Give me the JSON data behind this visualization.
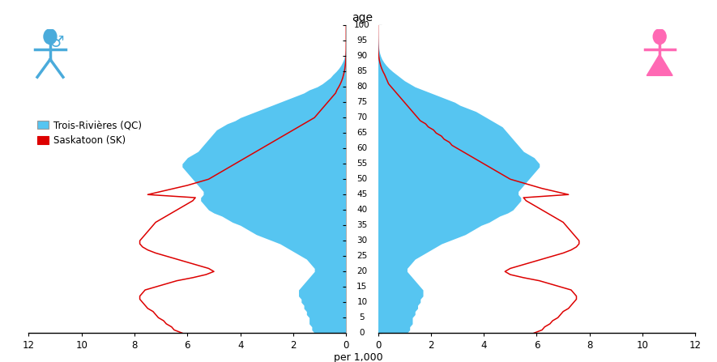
{
  "ages": [
    0,
    1,
    2,
    3,
    4,
    5,
    6,
    7,
    8,
    9,
    10,
    11,
    12,
    13,
    14,
    15,
    16,
    17,
    18,
    19,
    20,
    21,
    22,
    23,
    24,
    25,
    26,
    27,
    28,
    29,
    30,
    31,
    32,
    33,
    34,
    35,
    36,
    37,
    38,
    39,
    40,
    41,
    42,
    43,
    44,
    45,
    46,
    47,
    48,
    49,
    50,
    51,
    52,
    53,
    54,
    55,
    56,
    57,
    58,
    59,
    60,
    61,
    62,
    63,
    64,
    65,
    66,
    67,
    68,
    69,
    70,
    71,
    72,
    73,
    74,
    75,
    76,
    77,
    78,
    79,
    80,
    81,
    82,
    83,
    84,
    85,
    86,
    87,
    88,
    89,
    90,
    91,
    92,
    93,
    94,
    95,
    96,
    97,
    98,
    99,
    100
  ],
  "trois_rivieres_male": [
    1.2,
    1.3,
    1.3,
    1.4,
    1.4,
    1.4,
    1.5,
    1.5,
    1.6,
    1.6,
    1.7,
    1.7,
    1.8,
    1.8,
    1.8,
    1.7,
    1.6,
    1.5,
    1.4,
    1.3,
    1.2,
    1.2,
    1.3,
    1.4,
    1.5,
    1.7,
    1.9,
    2.1,
    2.3,
    2.5,
    2.8,
    3.1,
    3.4,
    3.6,
    3.8,
    4.0,
    4.3,
    4.5,
    4.7,
    5.0,
    5.2,
    5.3,
    5.4,
    5.5,
    5.5,
    5.4,
    5.4,
    5.5,
    5.6,
    5.7,
    5.8,
    5.9,
    6.0,
    6.1,
    6.2,
    6.2,
    6.1,
    6.0,
    5.8,
    5.6,
    5.5,
    5.4,
    5.3,
    5.2,
    5.1,
    5.0,
    4.9,
    4.7,
    4.5,
    4.2,
    4.0,
    3.7,
    3.4,
    3.1,
    2.8,
    2.5,
    2.2,
    1.9,
    1.6,
    1.4,
    1.1,
    0.9,
    0.75,
    0.6,
    0.5,
    0.38,
    0.28,
    0.2,
    0.14,
    0.09,
    0.06,
    0.04,
    0.025,
    0.015,
    0.009,
    0.005,
    0.003,
    0.002,
    0.001,
    0.0005,
    0.0002
  ],
  "trois_rivieres_female": [
    1.1,
    1.2,
    1.2,
    1.3,
    1.3,
    1.3,
    1.4,
    1.4,
    1.5,
    1.5,
    1.6,
    1.6,
    1.7,
    1.7,
    1.7,
    1.6,
    1.5,
    1.4,
    1.3,
    1.2,
    1.1,
    1.1,
    1.2,
    1.3,
    1.4,
    1.6,
    1.8,
    2.0,
    2.2,
    2.4,
    2.7,
    3.0,
    3.3,
    3.5,
    3.7,
    3.9,
    4.2,
    4.4,
    4.6,
    4.9,
    5.1,
    5.2,
    5.3,
    5.4,
    5.4,
    5.3,
    5.3,
    5.4,
    5.5,
    5.6,
    5.7,
    5.8,
    5.9,
    6.0,
    6.1,
    6.1,
    6.0,
    5.9,
    5.7,
    5.5,
    5.4,
    5.3,
    5.2,
    5.1,
    5.0,
    4.9,
    4.8,
    4.7,
    4.5,
    4.3,
    4.1,
    3.9,
    3.7,
    3.4,
    3.1,
    2.9,
    2.6,
    2.3,
    2.0,
    1.7,
    1.4,
    1.2,
    1.0,
    0.85,
    0.7,
    0.55,
    0.42,
    0.31,
    0.22,
    0.15,
    0.1,
    0.065,
    0.04,
    0.025,
    0.015,
    0.009,
    0.005,
    0.003,
    0.002,
    0.001,
    0.0003
  ],
  "saskatoon_male": [
    6.2,
    6.5,
    6.6,
    6.8,
    6.9,
    7.1,
    7.2,
    7.3,
    7.5,
    7.6,
    7.7,
    7.8,
    7.8,
    7.7,
    7.6,
    7.2,
    6.8,
    6.4,
    5.8,
    5.3,
    5.0,
    5.2,
    5.6,
    6.0,
    6.4,
    6.8,
    7.2,
    7.5,
    7.7,
    7.8,
    7.8,
    7.7,
    7.6,
    7.5,
    7.4,
    7.3,
    7.2,
    7.0,
    6.8,
    6.6,
    6.4,
    6.2,
    6.0,
    5.8,
    5.7,
    7.5,
    7.0,
    6.5,
    6.0,
    5.6,
    5.2,
    5.0,
    4.8,
    4.6,
    4.4,
    4.2,
    4.0,
    3.8,
    3.6,
    3.4,
    3.2,
    3.0,
    2.8,
    2.6,
    2.4,
    2.2,
    2.0,
    1.8,
    1.6,
    1.4,
    1.2,
    1.1,
    1.0,
    0.9,
    0.8,
    0.7,
    0.6,
    0.5,
    0.4,
    0.35,
    0.28,
    0.22,
    0.17,
    0.13,
    0.1,
    0.07,
    0.05,
    0.035,
    0.023,
    0.015,
    0.009,
    0.005,
    0.003,
    0.002,
    0.001,
    0.0005,
    0.0003,
    0.0001,
    5e-05,
    2e-05,
    1e-05
  ],
  "saskatoon_female": [
    5.9,
    6.2,
    6.3,
    6.5,
    6.6,
    6.8,
    6.9,
    7.0,
    7.2,
    7.3,
    7.4,
    7.5,
    7.5,
    7.4,
    7.3,
    6.9,
    6.5,
    6.1,
    5.5,
    5.0,
    4.8,
    5.0,
    5.4,
    5.8,
    6.2,
    6.6,
    7.0,
    7.3,
    7.5,
    7.6,
    7.6,
    7.5,
    7.4,
    7.3,
    7.2,
    7.1,
    7.0,
    6.8,
    6.6,
    6.4,
    6.2,
    6.0,
    5.8,
    5.6,
    5.5,
    7.2,
    6.7,
    6.2,
    5.8,
    5.4,
    5.0,
    4.8,
    4.6,
    4.4,
    4.2,
    4.0,
    3.8,
    3.6,
    3.4,
    3.2,
    3.0,
    2.8,
    2.7,
    2.5,
    2.4,
    2.2,
    2.1,
    1.9,
    1.8,
    1.6,
    1.5,
    1.4,
    1.3,
    1.2,
    1.1,
    1.0,
    0.9,
    0.8,
    0.7,
    0.6,
    0.5,
    0.4,
    0.35,
    0.3,
    0.25,
    0.19,
    0.14,
    0.1,
    0.07,
    0.045,
    0.028,
    0.017,
    0.01,
    0.006,
    0.003,
    0.002,
    0.001,
    0.0005,
    0.0002,
    0.0001,
    5e-05
  ],
  "title": "age",
  "xlabel": "per 1,000",
  "xlim": 12,
  "ylim_min": 0,
  "ylim_max": 100,
  "color_tr": "#56C5F1",
  "color_sk": "#DD0000",
  "color_male_icon": "#4AABDB",
  "color_female_icon": "#FF69B4",
  "legend_tr": "Trois-Rivières (QC)",
  "legend_sk": "Saskatoon (SK)",
  "xticks": [
    0,
    2,
    4,
    6,
    8,
    10,
    12
  ],
  "yticks": [
    0,
    5,
    10,
    15,
    20,
    25,
    30,
    35,
    40,
    45,
    50,
    55,
    60,
    65,
    70,
    75,
    80,
    85,
    90,
    95,
    100
  ],
  "bg_color": "#FFFFFF",
  "border_color": "#000000"
}
